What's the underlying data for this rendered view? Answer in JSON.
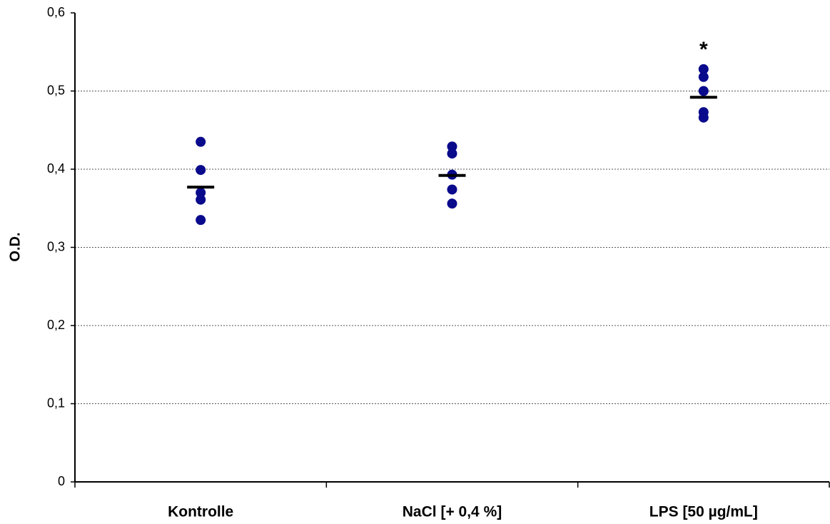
{
  "chart_data": {
    "type": "dotplot",
    "y_label": "O.D.",
    "categories": [
      "Kontrolle",
      "NaCl [+ 0,4 %]",
      "LPS [50 µg/mL]"
    ],
    "points": [
      [
        0.435,
        0.399,
        0.37,
        0.361,
        0.335
      ],
      [
        0.429,
        0.42,
        0.393,
        0.374,
        0.356
      ],
      [
        0.528,
        0.518,
        0.5,
        0.473,
        0.466
      ]
    ],
    "means": [
      0.377,
      0.392,
      0.492
    ],
    "color": "#0a0a8c",
    "mean_color": "#000000",
    "annotations": [
      {
        "label": "*",
        "category": "LPS [50 µg/mL]"
      }
    ],
    "ylim": [
      0,
      0.6
    ],
    "yticks": [
      0,
      {
        "value": 0.1,
        "label": "0,1"
      },
      {
        "value": 0.2,
        "label": "0,2"
      },
      {
        "value": 0.3,
        "label": "0,3"
      },
      {
        "value": 0.4,
        "label": "0,4"
      },
      {
        "value": 0.5,
        "label": "0,5"
      },
      {
        "value": 0.6,
        "label": "0,6"
      }
    ],
    "grid": true
  }
}
